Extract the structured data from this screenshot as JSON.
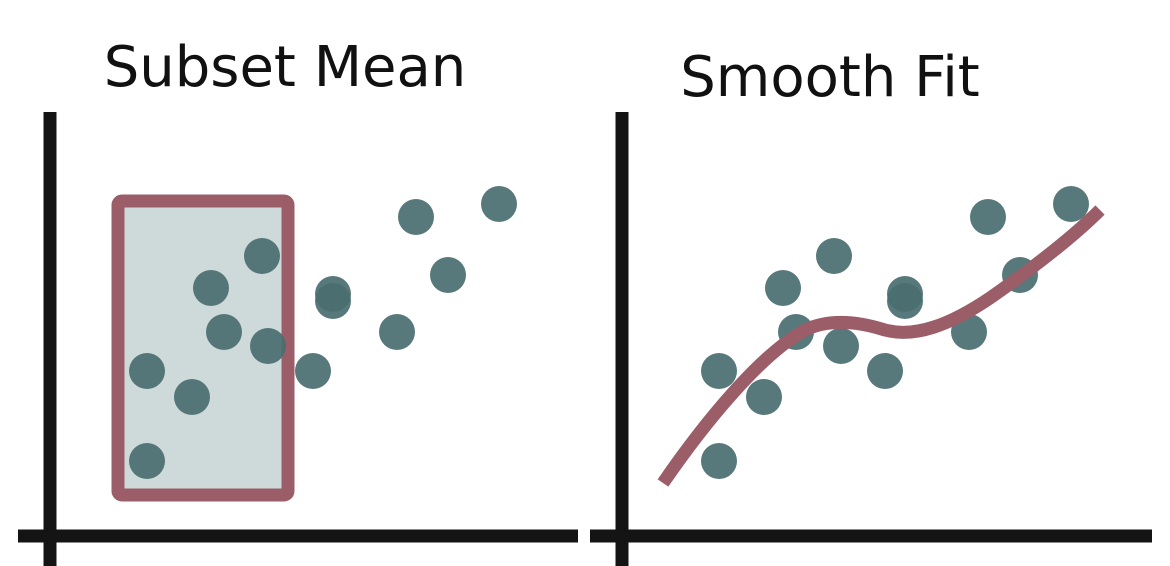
{
  "colors": {
    "axis": "#141414",
    "point": "#4a6e70",
    "highlight": "#9b5d68",
    "subset_fill": "#c5d4d4",
    "title": "#111111"
  },
  "panels": [
    {
      "title": "Subset Mean",
      "points": [
        [
          147,
          371
        ],
        [
          147,
          461
        ],
        [
          192,
          397
        ],
        [
          211,
          288
        ],
        [
          224,
          332
        ],
        [
          262,
          256
        ],
        [
          268,
          346
        ],
        [
          313,
          371
        ],
        [
          333,
          294
        ],
        [
          333,
          301
        ],
        [
          397,
          332
        ],
        [
          416,
          217
        ],
        [
          448,
          275
        ],
        [
          499,
          204
        ]
      ]
    },
    {
      "title": "Smooth Fit",
      "points": [
        [
          719,
          371
        ],
        [
          719,
          461
        ],
        [
          764,
          397
        ],
        [
          783,
          288
        ],
        [
          796,
          332
        ],
        [
          834,
          256
        ],
        [
          841,
          346
        ],
        [
          885,
          371
        ],
        [
          905,
          294
        ],
        [
          905,
          301
        ],
        [
          969,
          332
        ],
        [
          988,
          217
        ],
        [
          1020,
          275
        ],
        [
          1071,
          204
        ]
      ]
    }
  ]
}
